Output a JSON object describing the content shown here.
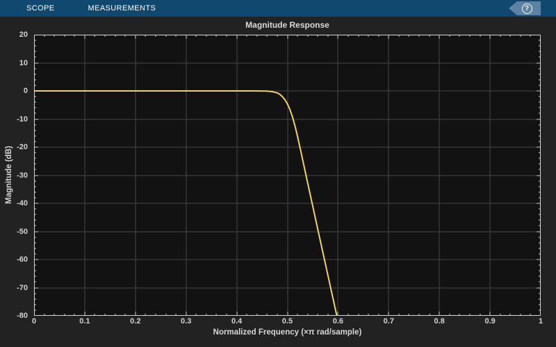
{
  "toolbar": {
    "tabs": [
      {
        "label": "SCOPE"
      },
      {
        "label": "MEASUREMENTS"
      }
    ],
    "help_icon_glyph": "?"
  },
  "colors": {
    "toolbar_bg": "#11486F",
    "help_banner": "#5E82A4",
    "figure_bg": "#222222",
    "plot_bg": "#121212",
    "grid": "#464646",
    "axis_border": "#d4d4d4",
    "tick": "#cfcfcf",
    "text": "#d6d6d6",
    "line": "#EDD55F"
  },
  "chart_data": {
    "type": "line",
    "title": "Magnitude Response",
    "xlabel": "Normalized Frequency (×π rad/sample)",
    "ylabel": "Magnitude (dB)",
    "xlim": [
      0,
      1
    ],
    "ylim": [
      -80,
      20
    ],
    "grid": true,
    "legend": false,
    "xticks": [
      0,
      0.1,
      0.2,
      0.3,
      0.4,
      0.5,
      0.6,
      0.7,
      0.8,
      0.9,
      1
    ],
    "xtick_labels": [
      "0",
      "0.1",
      "0.2",
      "0.3",
      "0.4",
      "0.5",
      "0.6",
      "0.7",
      "0.8",
      "0.9",
      "1"
    ],
    "yticks": [
      -80,
      -70,
      -60,
      -50,
      -40,
      -30,
      -20,
      -10,
      0,
      10,
      20
    ],
    "ytick_labels": [
      "-80",
      "-70",
      "-60",
      "-50",
      "-40",
      "-30",
      "-20",
      "-10",
      "0",
      "10",
      "20"
    ],
    "x_major_step": 0.1,
    "x_minor_step": 0.02,
    "y_major_step": 10,
    "y_minor_step": 2,
    "series": [
      {
        "color": "#EDD55F",
        "points": [
          [
            0,
            0
          ],
          [
            0.05,
            0
          ],
          [
            0.1,
            0
          ],
          [
            0.15,
            0
          ],
          [
            0.2,
            0
          ],
          [
            0.25,
            0
          ],
          [
            0.3,
            0
          ],
          [
            0.35,
            0
          ],
          [
            0.4,
            0
          ],
          [
            0.43,
            0
          ],
          [
            0.45,
            -0.02
          ],
          [
            0.46,
            -0.08
          ],
          [
            0.47,
            -0.25
          ],
          [
            0.48,
            -0.7
          ],
          [
            0.485,
            -1.2
          ],
          [
            0.49,
            -2.0
          ],
          [
            0.495,
            -3.1
          ],
          [
            0.5,
            -4.6
          ],
          [
            0.505,
            -6.6
          ],
          [
            0.51,
            -9.2
          ],
          [
            0.515,
            -12.4
          ],
          [
            0.52,
            -16.2
          ],
          [
            0.525,
            -20.2
          ],
          [
            0.53,
            -24.4
          ],
          [
            0.54,
            -32.8
          ],
          [
            0.55,
            -41.0
          ],
          [
            0.56,
            -49.2
          ],
          [
            0.57,
            -57.4
          ],
          [
            0.58,
            -65.6
          ],
          [
            0.59,
            -73.8
          ],
          [
            0.5975,
            -80
          ]
        ]
      }
    ]
  }
}
